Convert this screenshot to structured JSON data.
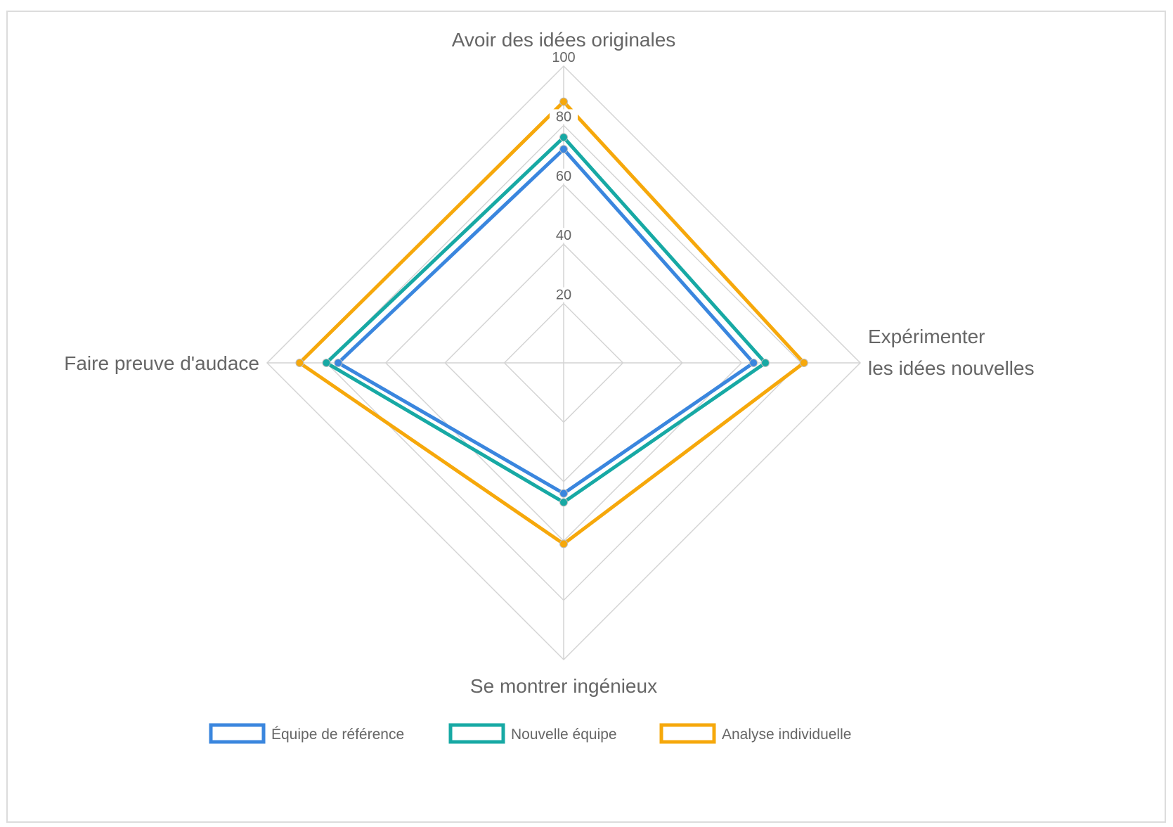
{
  "chart_data": {
    "type": "radar",
    "axes": [
      [
        "Avoir des idées originales"
      ],
      [
        "Expérimenter",
        "les idées nouvelles"
      ],
      [
        "Se montrer ingénieux"
      ],
      [
        "Faire preuve d'audace"
      ]
    ],
    "rlim": [
      0,
      100
    ],
    "ticks": [
      "20",
      "40",
      "60",
      "80",
      "100"
    ],
    "grid": true,
    "legend_position": "bottom",
    "series": [
      {
        "name": "Équipe de référence",
        "color": "#3a86de",
        "values": [
          72,
          64,
          44,
          76
        ]
      },
      {
        "name": "Nouvelle équipe",
        "color": "#17a9a4",
        "values": [
          76,
          68,
          47,
          80
        ]
      },
      {
        "name": "Analyse individuelle",
        "color": "#f6a80b",
        "values": [
          88,
          81,
          61,
          89
        ]
      }
    ]
  }
}
